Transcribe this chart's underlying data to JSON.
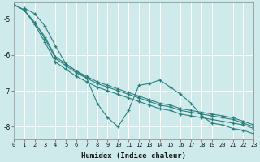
{
  "xlabel": "Humidex (Indice chaleur)",
  "bg_color": "#ceeaea",
  "line_color": "#2d7f7f",
  "grid_color": "#ffffff",
  "xlim": [
    0,
    23
  ],
  "ylim": [
    -8.35,
    -4.55
  ],
  "yticks": [
    -8,
    -7,
    -6,
    -5
  ],
  "xticks": [
    0,
    1,
    2,
    3,
    4,
    5,
    6,
    7,
    8,
    9,
    10,
    11,
    12,
    13,
    14,
    15,
    16,
    17,
    18,
    19,
    20,
    21,
    22,
    23
  ],
  "series": [
    [
      null,
      -4.7,
      -4.85,
      -5.2,
      -5.75,
      -6.25,
      -6.45,
      -6.65,
      -7.35,
      -7.75,
      -8.0,
      -7.55,
      -6.85,
      -6.8,
      -6.7,
      -6.9,
      -7.1,
      -7.35,
      -7.7,
      -7.9,
      -7.95,
      -8.05,
      -8.1,
      -8.2
    ],
    [
      -4.6,
      -4.75,
      -5.15,
      -5.65,
      -6.2,
      -6.4,
      -6.6,
      -6.75,
      -6.9,
      -7.0,
      -7.1,
      -7.2,
      -7.3,
      -7.4,
      -7.5,
      -7.55,
      -7.65,
      -7.7,
      -7.75,
      -7.8,
      -7.85,
      -7.9,
      -7.95,
      -8.05
    ],
    [
      -4.6,
      -4.75,
      -5.1,
      -5.55,
      -6.1,
      -6.3,
      -6.5,
      -6.65,
      -6.8,
      -6.9,
      -7.0,
      -7.1,
      -7.2,
      -7.3,
      -7.4,
      -7.45,
      -7.55,
      -7.6,
      -7.65,
      -7.7,
      -7.75,
      -7.8,
      -7.9,
      -8.0
    ],
    [
      -4.6,
      -4.75,
      -5.1,
      -5.5,
      -6.05,
      -6.25,
      -6.45,
      -6.6,
      -6.75,
      -6.85,
      -6.95,
      -7.05,
      -7.15,
      -7.25,
      -7.35,
      -7.4,
      -7.5,
      -7.55,
      -7.6,
      -7.65,
      -7.7,
      -7.75,
      -7.85,
      -7.95
    ]
  ],
  "marker": "+",
  "markersize": 3.5,
  "linewidth": 0.8
}
